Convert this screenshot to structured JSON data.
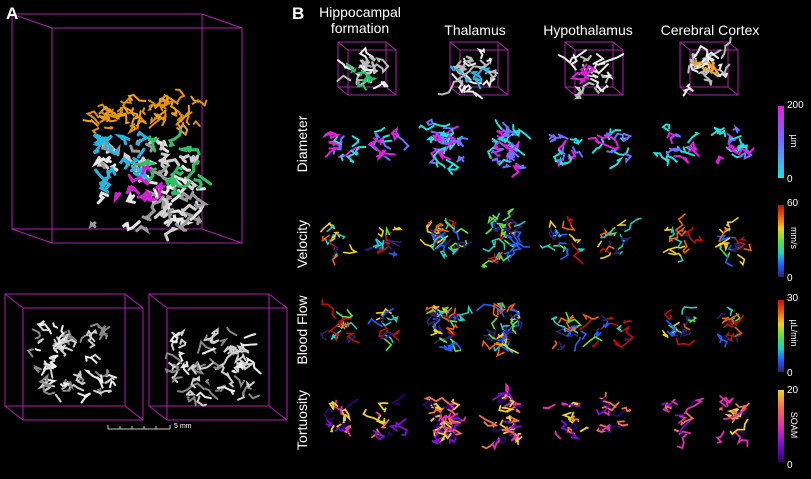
{
  "panel_a": {
    "label": "A",
    "scale_bar": "5 mm"
  },
  "panel_b": {
    "label": "B",
    "columns": [
      "Hippocampal formation",
      "Thalamus",
      "Hypothalamus",
      "Cerebral Cortex"
    ],
    "region_colors": [
      "#2fbf6a",
      "#27b4e0",
      "#d020d0",
      "#f0a020"
    ],
    "rows": [
      {
        "label": "Diameter",
        "unit": "µm",
        "max": "200",
        "min": "0",
        "colormap": [
          "#20e0e0",
          "#7070ff",
          "#e020e0"
        ]
      },
      {
        "label": "Velocity",
        "unit": "mm/s",
        "max": "60",
        "min": "0",
        "colormap": [
          "#302070",
          "#2060ff",
          "#20d0c0",
          "#60e040",
          "#f0d020",
          "#f06010",
          "#c01010"
        ]
      },
      {
        "label": "Blood Flow",
        "unit": "µL/min",
        "max": "30",
        "min": "0",
        "colormap": [
          "#302070",
          "#2060ff",
          "#20d0c0",
          "#60e040",
          "#f0d020",
          "#f06010",
          "#c01010"
        ]
      },
      {
        "label": "Tortuosity",
        "unit": "SOAM",
        "max": "20",
        "min": "0",
        "colormap": [
          "#300070",
          "#8010d0",
          "#e030b0",
          "#f07050",
          "#f0d030"
        ]
      }
    ]
  },
  "box_color": "#b020b0"
}
